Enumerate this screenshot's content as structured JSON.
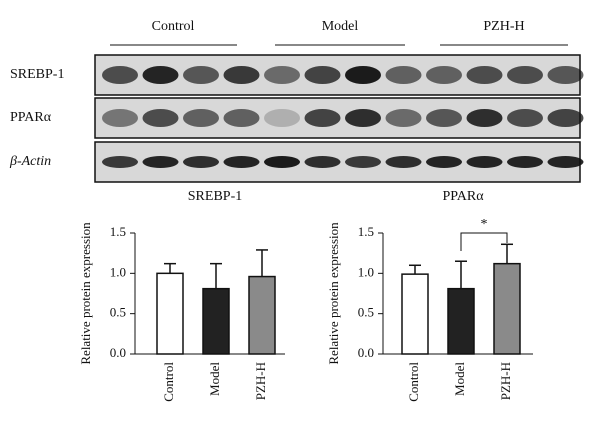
{
  "blot": {
    "groups": [
      "Control",
      "Model",
      "PZH-H"
    ],
    "rows": [
      "SREBP-1",
      "PPARα",
      "β-Actin"
    ]
  },
  "chart_data": [
    {
      "type": "bar",
      "title": "SREBP-1",
      "y_label": "Relative protein expression",
      "categories": [
        "Control",
        "Model",
        "PZH-H"
      ],
      "values": [
        1.0,
        0.81,
        0.96
      ],
      "errors": [
        0.12,
        0.31,
        0.33
      ],
      "colors": [
        "#ffffff",
        "#222222",
        "#8a8a8a"
      ],
      "ylim": [
        0,
        1.5
      ],
      "yticks": [
        {
          "value": 0,
          "label": "0.0"
        },
        {
          "value": 0.5,
          "label": "0.5"
        },
        {
          "value": 1,
          "label": "1.0"
        },
        {
          "value": 1.5,
          "label": "1.5"
        }
      ]
    },
    {
      "type": "bar",
      "title": "PPARα",
      "y_label": "Relative protein expression",
      "categories": [
        "Control",
        "Model",
        "PZH-H"
      ],
      "values": [
        0.99,
        0.81,
        1.12
      ],
      "errors": [
        0.11,
        0.34,
        0.24
      ],
      "colors": [
        "#ffffff",
        "#222222",
        "#8a8a8a"
      ],
      "annotation": "*",
      "ylim": [
        0,
        1.5
      ],
      "yticks": [
        {
          "value": 0,
          "label": "0.0"
        },
        {
          "value": 0.5,
          "label": "0.5"
        },
        {
          "value": 1,
          "label": "1.0"
        },
        {
          "value": 1.5,
          "label": "1.5"
        }
      ]
    }
  ]
}
